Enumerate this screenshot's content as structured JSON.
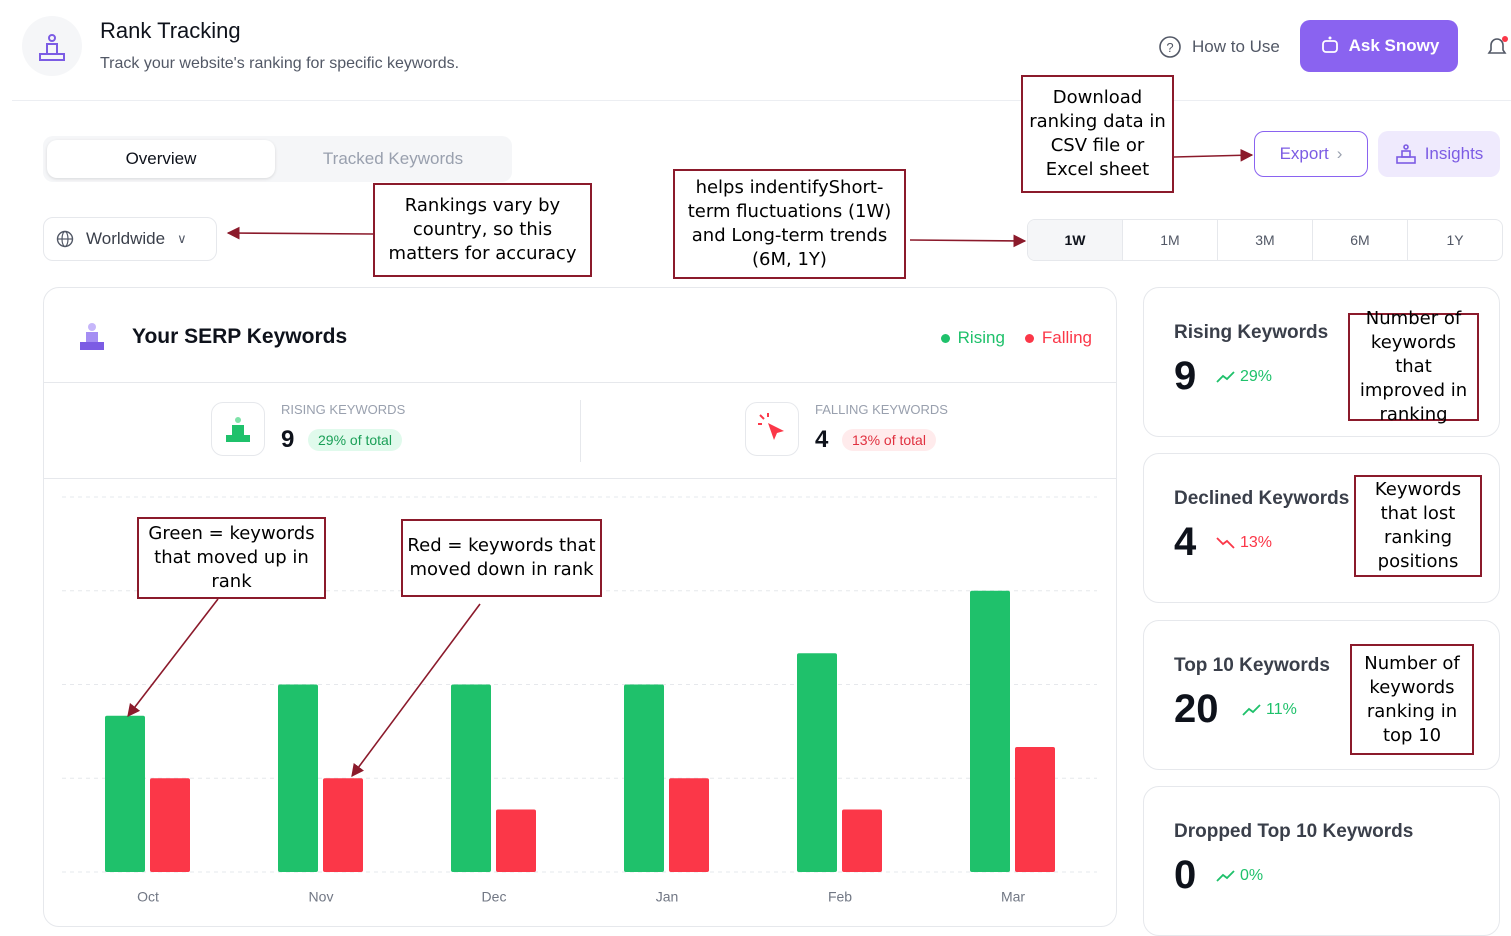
{
  "header": {
    "title": "Rank Tracking",
    "subtitle": "Track your website's ranking for specific keywords.",
    "help": "How to Use",
    "ask": "Ask Snowy"
  },
  "tabs": [
    "Overview",
    "Tracked Keywords"
  ],
  "location": "Worldwide",
  "buttons": {
    "export": "Export",
    "insights": "Insights"
  },
  "periods": [
    "1W",
    "1M",
    "3M",
    "6M",
    "1Y"
  ],
  "panel_title": "Your SERP Keywords",
  "summary": [
    {
      "label": "RISING KEYWORDS",
      "value": 9,
      "badge": "29% of total"
    },
    {
      "label": "FALLING KEYWORDS",
      "value": 4,
      "badge": "13% of total"
    }
  ],
  "chart_data": {
    "type": "bar",
    "categories": [
      "Oct",
      "Nov",
      "Dec",
      "Jan",
      "Feb",
      "Mar"
    ],
    "series": [
      {
        "name": "Rising",
        "color": "#1fc16b",
        "values": [
          5,
          6,
          6,
          6,
          7,
          9
        ]
      },
      {
        "name": "Falling",
        "color": "#fb3748",
        "values": [
          3,
          3,
          2,
          3,
          2,
          4
        ]
      }
    ],
    "ylim": [
      0,
      12
    ],
    "yticks": [
      0,
      3,
      6,
      9,
      12
    ],
    "grid": true
  },
  "cards": [
    {
      "title": "Rising Keywords",
      "value": 9,
      "change": "29%",
      "trend": "up"
    },
    {
      "title": "Declined Keywords",
      "value": 4,
      "change": "13%",
      "trend": "down"
    },
    {
      "title": "Top 10 Keywords",
      "value": 20,
      "change": "11%",
      "trend": "up"
    },
    {
      "title": "Dropped Top 10 Keywords",
      "value": 0,
      "change": "0%",
      "trend": "up"
    }
  ],
  "annotations": [
    "Download ranking data in CSV file or Excel sheet",
    "Rankings vary by country, so this matters for accuracy",
    "helps indentifyShort-term fluctuations (1W) and Long-term trends (6M, 1Y)",
    "Green = keywords that moved up in rank",
    "Red = keywords that moved down in rank",
    "Number of keywords that improved in ranking",
    "Keywords that lost ranking positions",
    "Number of keywords ranking in top 10"
  ]
}
